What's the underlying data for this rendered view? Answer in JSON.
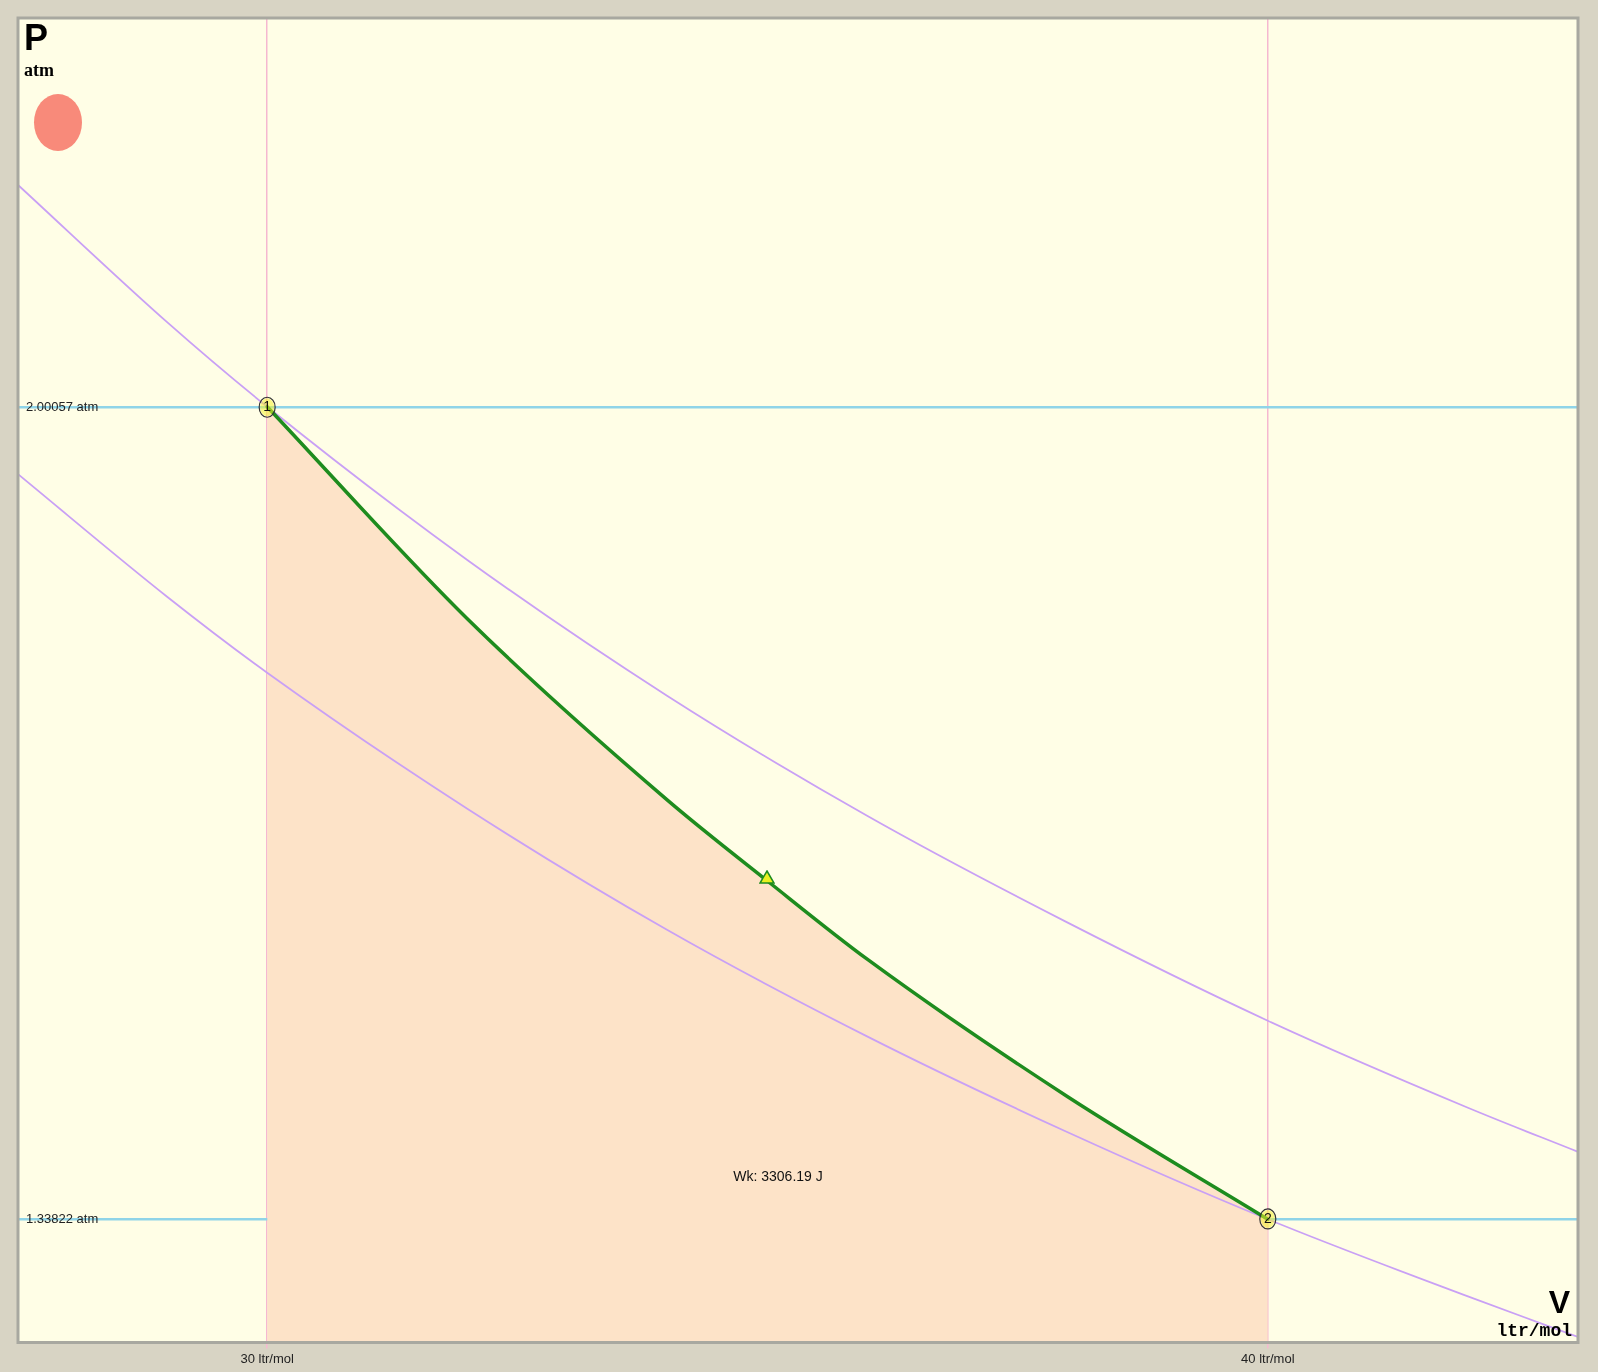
{
  "chart_data": {
    "type": "line",
    "xlabel": "V\nltr/mol",
    "ylabel": "P\natm",
    "xlim": [
      27.51,
      43.1
    ],
    "ylim": [
      1.2375,
      2.3182
    ],
    "xticks": [
      {
        "value": 30,
        "label": "30 ltr/mol"
      },
      {
        "value": 40,
        "label": "40 ltr/mol"
      }
    ],
    "yticks": [
      {
        "value": 1.33822,
        "label": "1.33822 atm"
      },
      {
        "value": 2.00057,
        "label": "2.00057 atm"
      }
    ],
    "grid": true,
    "legend": false,
    "series": [
      {
        "color": "#c9a0f5",
        "x": [
          27.51,
          29,
          30,
          32,
          34,
          36,
          38,
          40,
          42,
          43.1
        ],
        "values": [
          2.182,
          2.07,
          2.001,
          1.876,
          1.765,
          1.667,
          1.58,
          1.5,
          1.429,
          1.393
        ]
      },
      {
        "color": "#c9a0f5",
        "x": [
          27.51,
          29,
          30,
          32,
          34,
          36,
          38,
          40,
          42,
          43.1
        ],
        "values": [
          1.946,
          1.846,
          1.784,
          1.673,
          1.574,
          1.487,
          1.409,
          1.338,
          1.275,
          1.242
        ]
      },
      {
        "type": "area",
        "color": "#fde3c8",
        "x": [
          30,
          32,
          34,
          35,
          36,
          38,
          40
        ],
        "values": [
          2.001,
          1.828,
          1.68,
          1.614,
          1.55,
          1.438,
          1.338
        ]
      },
      {
        "color": "#1e8c1e",
        "x": [
          30,
          32,
          34,
          35,
          36,
          38,
          40
        ],
        "values": [
          2.001,
          1.828,
          1.68,
          1.614,
          1.55,
          1.438,
          1.338
        ]
      }
    ],
    "annotations": [
      {
        "text": "1",
        "x": 30,
        "y": 2.00057
      },
      {
        "text": "2",
        "x": 40,
        "y": 1.33822
      },
      "Wk: 3306.19 J"
    ]
  }
}
